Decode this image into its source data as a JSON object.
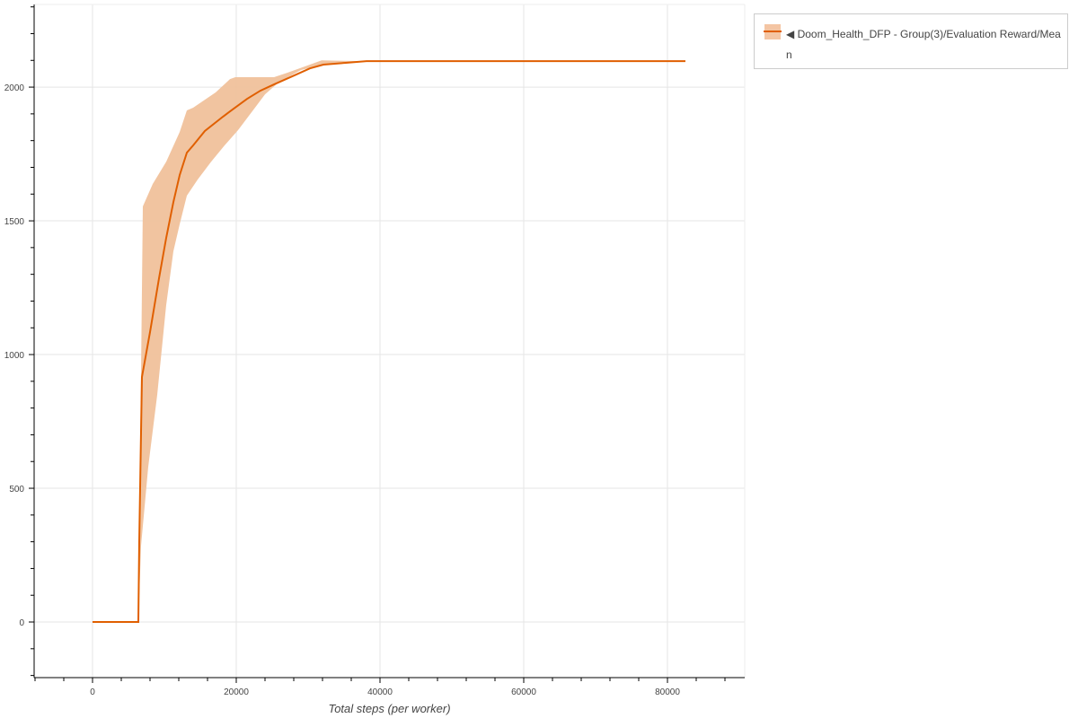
{
  "chart_data": {
    "type": "line",
    "title": "",
    "xlabel": "Total steps (per worker)",
    "ylabel": "",
    "xlim": [
      -8125,
      90750
    ],
    "ylim": [
      -208,
      2309
    ],
    "x_ticks": [
      0,
      20000,
      40000,
      60000,
      80000
    ],
    "y_ticks": [
      0,
      500,
      1000,
      1500,
      2000
    ],
    "grid": true,
    "legend_position": "top-right, outside",
    "colors": {
      "line": "#e05f00",
      "band": "#f0c19b"
    },
    "series": [
      {
        "name": "◀ Doom_Health_DFP - Group(3)/Evaluation Reward/Mean",
        "mean": [
          [
            0,
            0
          ],
          [
            6375,
            0
          ],
          [
            6500,
            300
          ],
          [
            6875,
            916
          ],
          [
            8000,
            1084
          ],
          [
            9250,
            1285
          ],
          [
            10250,
            1436
          ],
          [
            11250,
            1570
          ],
          [
            12125,
            1671
          ],
          [
            13125,
            1755
          ],
          [
            14000,
            1782
          ],
          [
            15625,
            1836
          ],
          [
            18125,
            1889
          ],
          [
            19625,
            1919
          ],
          [
            21500,
            1956
          ],
          [
            23375,
            1987
          ],
          [
            25250,
            2010
          ],
          [
            27750,
            2040
          ],
          [
            30250,
            2070
          ],
          [
            32125,
            2084
          ],
          [
            35250,
            2091
          ],
          [
            38125,
            2097
          ],
          [
            82500,
            2097
          ]
        ],
        "upper": [
          [
            6375,
            0
          ],
          [
            7000,
            1554
          ],
          [
            8375,
            1638
          ],
          [
            10250,
            1721
          ],
          [
            12125,
            1832
          ],
          [
            13125,
            1913
          ],
          [
            14000,
            1923
          ],
          [
            17125,
            1980
          ],
          [
            19125,
            2030
          ],
          [
            19875,
            2037
          ],
          [
            25250,
            2037
          ],
          [
            27125,
            2054
          ],
          [
            30250,
            2084
          ],
          [
            31875,
            2100
          ],
          [
            38125,
            2097
          ]
        ],
        "lower": [
          [
            6375,
            0
          ],
          [
            6750,
            285
          ],
          [
            7750,
            580
          ],
          [
            9000,
            849
          ],
          [
            10250,
            1185
          ],
          [
            11250,
            1386
          ],
          [
            12125,
            1487
          ],
          [
            13125,
            1594
          ],
          [
            14625,
            1654
          ],
          [
            16500,
            1721
          ],
          [
            18375,
            1782
          ],
          [
            20250,
            1839
          ],
          [
            22125,
            1906
          ],
          [
            24000,
            1973
          ],
          [
            25875,
            2017
          ],
          [
            29000,
            2064
          ],
          [
            32125,
            2084
          ],
          [
            38125,
            2097
          ]
        ]
      }
    ]
  }
}
